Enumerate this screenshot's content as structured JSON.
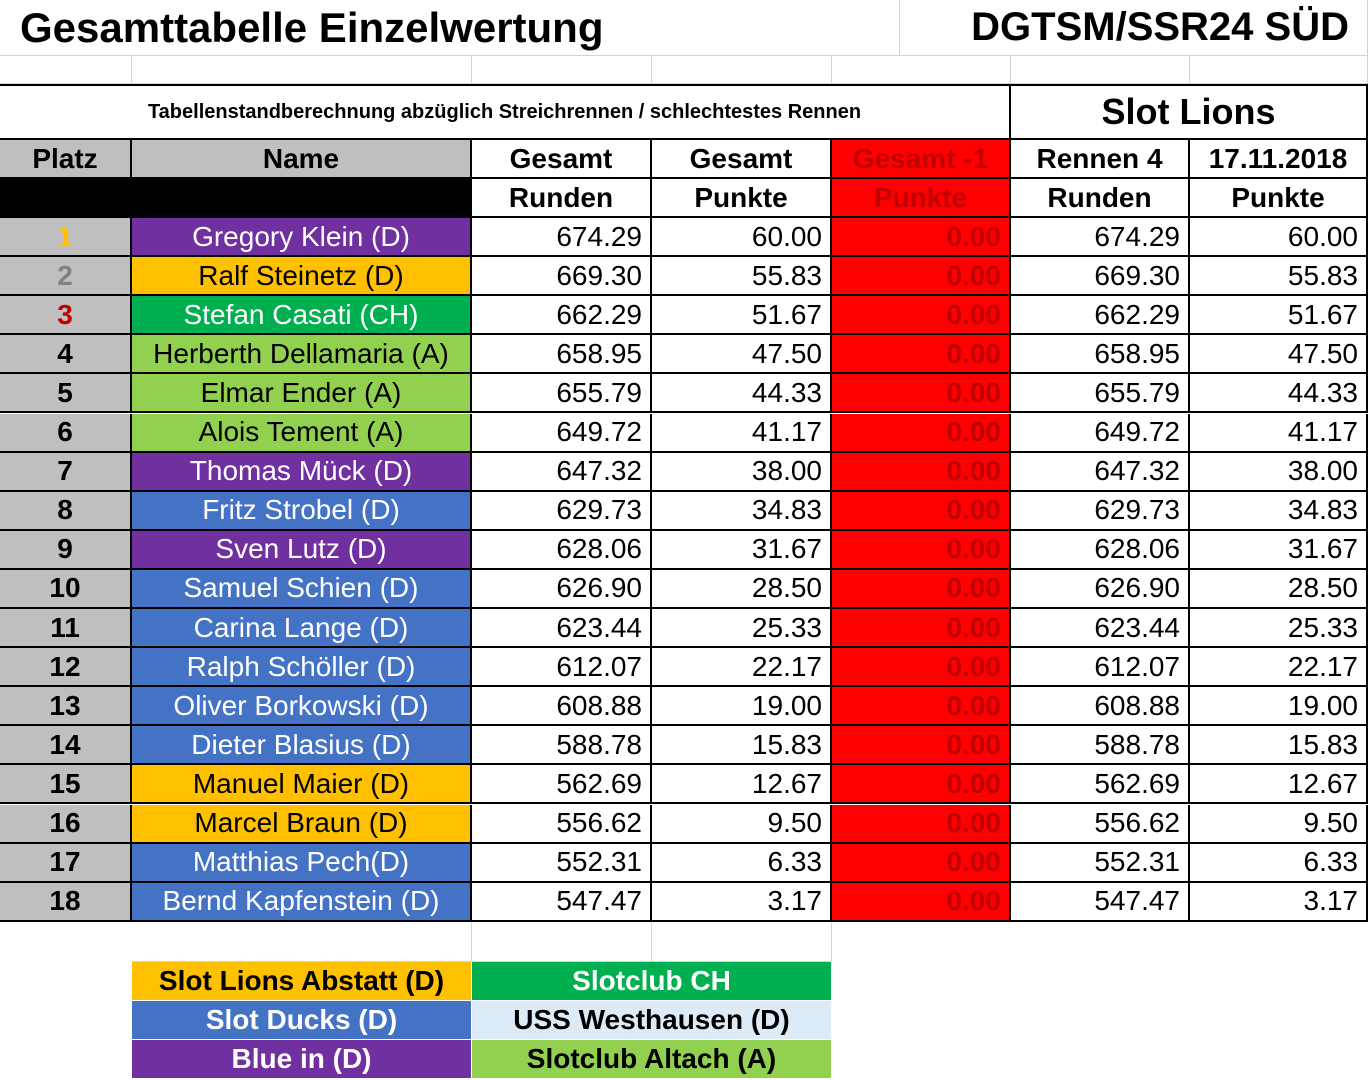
{
  "title_left": "Gesamttabelle Einzelwertung",
  "title_right": "DGTSM/SSR24 SÜD",
  "subtitle": "Tabellenstandberechnung abzüglich Streichrennen / schlechtestes Rennen",
  "club_title": "Slot Lions",
  "headers1": [
    "Platz",
    "Name",
    "Gesamt",
    "Gesamt",
    "Gesamt -1",
    "Rennen 4",
    "17.11.2018"
  ],
  "headers2": [
    "",
    "",
    "Runden",
    "Punkte",
    "Punkte",
    "Runden",
    "Punkte"
  ],
  "colors": {
    "gold": "#ffc000",
    "silver": "#808080",
    "bronze": "#c00000",
    "purple": "#7030a0",
    "orange": "#ffc000",
    "green": "#00b050",
    "lightgreen": "#92d050",
    "blue": "#4472c4",
    "paleblue": "#ddebf7",
    "red": "#ff0000",
    "gray": "#bfbfbf"
  },
  "rows": [
    {
      "platz": "1",
      "name": "Gregory Klein (D)",
      "team": "purple",
      "gesamt_runden": "674.29",
      "gesamt_punkte": "60.00",
      "gesamt_minus1": "0.00",
      "rennen4_runden": "674.29",
      "rennen4_punkte": "60.00"
    },
    {
      "platz": "2",
      "name": "Ralf Steinetz (D)",
      "team": "orange",
      "gesamt_runden": "669.30",
      "gesamt_punkte": "55.83",
      "gesamt_minus1": "0.00",
      "rennen4_runden": "669.30",
      "rennen4_punkte": "55.83"
    },
    {
      "platz": "3",
      "name": "Stefan Casati (CH)",
      "team": "green",
      "gesamt_runden": "662.29",
      "gesamt_punkte": "51.67",
      "gesamt_minus1": "0.00",
      "rennen4_runden": "662.29",
      "rennen4_punkte": "51.67"
    },
    {
      "platz": "4",
      "name": "Herberth Dellamaria (A)",
      "team": "lightgreen",
      "gesamt_runden": "658.95",
      "gesamt_punkte": "47.50",
      "gesamt_minus1": "0.00",
      "rennen4_runden": "658.95",
      "rennen4_punkte": "47.50"
    },
    {
      "platz": "5",
      "name": "Elmar Ender (A)",
      "team": "lightgreen",
      "gesamt_runden": "655.79",
      "gesamt_punkte": "44.33",
      "gesamt_minus1": "0.00",
      "rennen4_runden": "655.79",
      "rennen4_punkte": "44.33"
    },
    {
      "platz": "6",
      "name": "Alois Tement (A)",
      "team": "lightgreen",
      "gesamt_runden": "649.72",
      "gesamt_punkte": "41.17",
      "gesamt_minus1": "0.00",
      "rennen4_runden": "649.72",
      "rennen4_punkte": "41.17"
    },
    {
      "platz": "7",
      "name": "Thomas Mück (D)",
      "team": "purple",
      "gesamt_runden": "647.32",
      "gesamt_punkte": "38.00",
      "gesamt_minus1": "0.00",
      "rennen4_runden": "647.32",
      "rennen4_punkte": "38.00"
    },
    {
      "platz": "8",
      "name": "Fritz Strobel (D)",
      "team": "blue",
      "gesamt_runden": "629.73",
      "gesamt_punkte": "34.83",
      "gesamt_minus1": "0.00",
      "rennen4_runden": "629.73",
      "rennen4_punkte": "34.83"
    },
    {
      "platz": "9",
      "name": "Sven Lutz (D)",
      "team": "purple",
      "gesamt_runden": "628.06",
      "gesamt_punkte": "31.67",
      "gesamt_minus1": "0.00",
      "rennen4_runden": "628.06",
      "rennen4_punkte": "31.67"
    },
    {
      "platz": "10",
      "name": "Samuel Schien (D)",
      "team": "blue",
      "gesamt_runden": "626.90",
      "gesamt_punkte": "28.50",
      "gesamt_minus1": "0.00",
      "rennen4_runden": "626.90",
      "rennen4_punkte": "28.50"
    },
    {
      "platz": "11",
      "name": "Carina Lange (D)",
      "team": "blue",
      "gesamt_runden": "623.44",
      "gesamt_punkte": "25.33",
      "gesamt_minus1": "0.00",
      "rennen4_runden": "623.44",
      "rennen4_punkte": "25.33"
    },
    {
      "platz": "12",
      "name": "Ralph Schöller (D)",
      "team": "blue",
      "gesamt_runden": "612.07",
      "gesamt_punkte": "22.17",
      "gesamt_minus1": "0.00",
      "rennen4_runden": "612.07",
      "rennen4_punkte": "22.17"
    },
    {
      "platz": "13",
      "name": "Oliver Borkowski (D)",
      "team": "blue",
      "gesamt_runden": "608.88",
      "gesamt_punkte": "19.00",
      "gesamt_minus1": "0.00",
      "rennen4_runden": "608.88",
      "rennen4_punkte": "19.00"
    },
    {
      "platz": "14",
      "name": "Dieter Blasius (D)",
      "team": "blue",
      "gesamt_runden": "588.78",
      "gesamt_punkte": "15.83",
      "gesamt_minus1": "0.00",
      "rennen4_runden": "588.78",
      "rennen4_punkte": "15.83"
    },
    {
      "platz": "15",
      "name": "Manuel Maier (D)",
      "team": "orange",
      "gesamt_runden": "562.69",
      "gesamt_punkte": "12.67",
      "gesamt_minus1": "0.00",
      "rennen4_runden": "562.69",
      "rennen4_punkte": "12.67"
    },
    {
      "platz": "16",
      "name": "Marcel Braun (D)",
      "team": "orange",
      "gesamt_runden": "556.62",
      "gesamt_punkte": "9.50",
      "gesamt_minus1": "0.00",
      "rennen4_runden": "556.62",
      "rennen4_punkte": "9.50"
    },
    {
      "platz": "17",
      "name": "Matthias Pech(D)",
      "team": "blue",
      "gesamt_runden": "552.31",
      "gesamt_punkte": "6.33",
      "gesamt_minus1": "0.00",
      "rennen4_runden": "552.31",
      "rennen4_punkte": "6.33"
    },
    {
      "platz": "18",
      "name": "Bernd Kapfenstein (D)",
      "team": "blue",
      "gesamt_runden": "547.47",
      "gesamt_punkte": "3.17",
      "gesamt_minus1": "0.00",
      "rennen4_runden": "547.47",
      "rennen4_punkte": "3.17"
    }
  ],
  "legend": [
    {
      "label": "Slot Lions Abstatt (D)",
      "team": "orange"
    },
    {
      "label": "Slotclub CH",
      "team": "green"
    },
    {
      "label": "Slot Ducks (D)",
      "team": "blue"
    },
    {
      "label": "USS Westhausen (D)",
      "team": "paleblue"
    },
    {
      "label": "Blue in (D)",
      "team": "purple"
    },
    {
      "label": "Slotclub Altach (A)",
      "team": "lightgreen"
    }
  ]
}
